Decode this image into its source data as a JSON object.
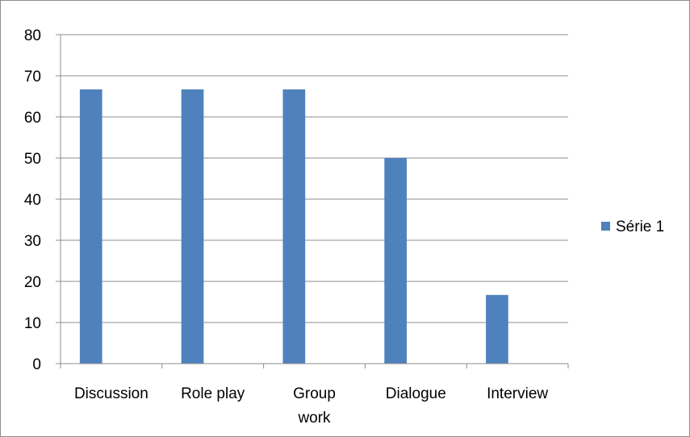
{
  "chart_data": {
    "type": "bar",
    "categories": [
      [
        "Discussion"
      ],
      [
        "Role play"
      ],
      [
        "Group",
        "work"
      ],
      [
        "Dialogue"
      ],
      [
        "Interview"
      ]
    ],
    "series": [
      {
        "name": "Série 1",
        "values": [
          66.7,
          66.7,
          66.7,
          50,
          16.7
        ],
        "color": "#4f81bd"
      }
    ],
    "title": "",
    "xlabel": "",
    "ylabel": "",
    "ylim": [
      0,
      80
    ],
    "yticks": [
      0,
      10,
      20,
      30,
      40,
      50,
      60,
      70,
      80
    ],
    "grid": true,
    "legend_position": "right"
  }
}
